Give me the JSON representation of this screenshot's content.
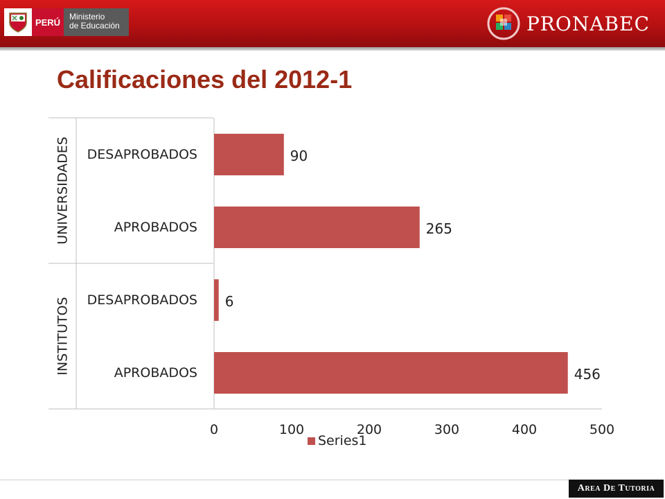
{
  "header": {
    "country_label": "PERÚ",
    "ministry_line1": "Ministerio",
    "ministry_line2": "de Educación",
    "brand": "PRONABEC"
  },
  "slide": {
    "title": "Calificaciones del 2012-1"
  },
  "footer": {
    "tag": "Area De Tutoria"
  },
  "colors": {
    "header_red": "#c4161a",
    "title": "#9a2a16",
    "bar": "#c0504d"
  },
  "chart_data": {
    "type": "bar",
    "orientation": "horizontal",
    "title": "",
    "groups": [
      {
        "name": "UNIVERSIDADES",
        "categories": [
          "DESAPROBADOS",
          "APROBADOS"
        ],
        "values": [
          90,
          265
        ]
      },
      {
        "name": "INSTITUTOS",
        "categories": [
          "DESAPROBADOS",
          "APROBADOS"
        ],
        "values": [
          6,
          456
        ]
      }
    ],
    "series": [
      {
        "name": "Series1",
        "color": "#c0504d"
      }
    ],
    "x_ticks": [
      0,
      100,
      200,
      300,
      400,
      500
    ],
    "xlim": [
      0,
      500
    ],
    "data_labels": true,
    "grid": false,
    "legend": "bottom"
  }
}
